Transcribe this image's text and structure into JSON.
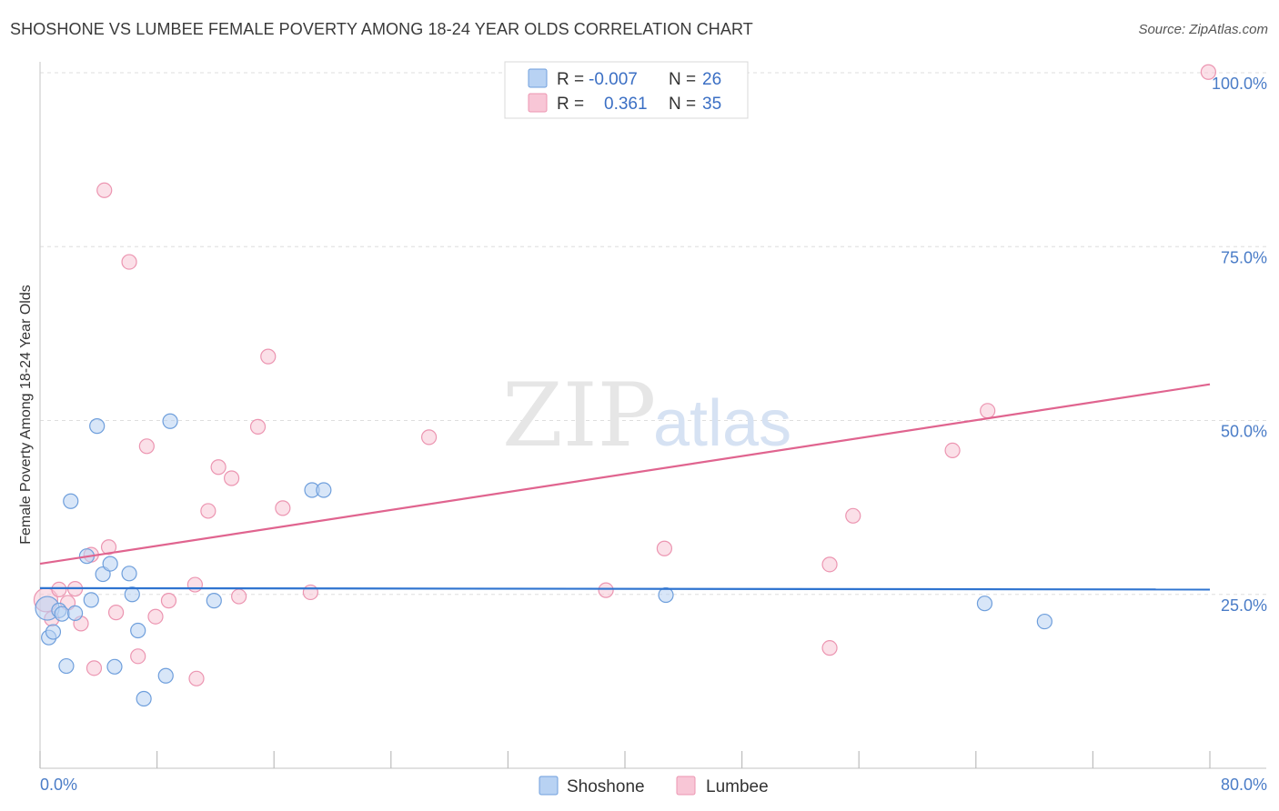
{
  "title": "SHOSHONE VS LUMBEE FEMALE POVERTY AMONG 18-24 YEAR OLDS CORRELATION CHART",
  "source": "Source: ZipAtlas.com",
  "watermark": {
    "zip": "ZIP",
    "atlas": "atlas"
  },
  "legend": {
    "r_label": "R =",
    "n_label": "N =",
    "rows": [
      {
        "name": "Shoshone",
        "r": "-0.007",
        "n": "26"
      },
      {
        "name": "Lumbee",
        "r": "0.361",
        "n": "35"
      }
    ]
  },
  "colors": {
    "shoshone_fill": "#b8d2f3",
    "shoshone_stroke": "#6f9fdc",
    "shoshone_line": "#2f74d0",
    "lumbee_fill": "#f8c6d6",
    "lumbee_stroke": "#ec95b1",
    "lumbee_line": "#e0648f"
  },
  "chart_data": {
    "type": "scatter",
    "title": "SHOSHONE VS LUMBEE FEMALE POVERTY AMONG 18-24 YEAR OLDS CORRELATION CHART",
    "ylabel": "Female Poverty Among 18-24 Year Olds",
    "xlabel": "",
    "xlim": [
      0,
      80
    ],
    "ylim": [
      0,
      100
    ],
    "x_tick_labels": [
      {
        "value": 0,
        "label": "0.0%"
      },
      {
        "value": 80,
        "label": "80.0%"
      }
    ],
    "y_tick_labels": [
      {
        "value": 25,
        "label": "25.0%"
      },
      {
        "value": 50,
        "label": "50.0%"
      },
      {
        "value": 75,
        "label": "75.0%"
      },
      {
        "value": 100,
        "label": "100.0%"
      }
    ],
    "series": [
      {
        "name": "Shoshone",
        "r": -0.007,
        "n": 26,
        "trend": {
          "x": [
            0,
            80
          ],
          "y": [
            25.9,
            25.7
          ]
        },
        "points": [
          {
            "x": 0.5,
            "y": 23.0
          },
          {
            "x": 0.6,
            "y": 18.8
          },
          {
            "x": 0.9,
            "y": 19.6
          },
          {
            "x": 1.3,
            "y": 22.7
          },
          {
            "x": 1.5,
            "y": 22.2
          },
          {
            "x": 1.8,
            "y": 14.7
          },
          {
            "x": 2.1,
            "y": 38.4
          },
          {
            "x": 2.4,
            "y": 22.3
          },
          {
            "x": 3.2,
            "y": 30.5
          },
          {
            "x": 3.5,
            "y": 24.2
          },
          {
            "x": 3.9,
            "y": 49.2
          },
          {
            "x": 4.3,
            "y": 27.9
          },
          {
            "x": 4.8,
            "y": 29.4
          },
          {
            "x": 5.1,
            "y": 14.6
          },
          {
            "x": 6.1,
            "y": 28.0
          },
          {
            "x": 6.3,
            "y": 25.0
          },
          {
            "x": 6.7,
            "y": 19.8
          },
          {
            "x": 7.1,
            "y": 10.0
          },
          {
            "x": 8.6,
            "y": 13.3
          },
          {
            "x": 8.9,
            "y": 49.9
          },
          {
            "x": 11.9,
            "y": 24.1
          },
          {
            "x": 18.6,
            "y": 40.0
          },
          {
            "x": 19.4,
            "y": 40.0
          },
          {
            "x": 42.8,
            "y": 24.9
          },
          {
            "x": 64.6,
            "y": 23.7
          },
          {
            "x": 68.7,
            "y": 21.1
          }
        ]
      },
      {
        "name": "Lumbee",
        "r": 0.361,
        "n": 35,
        "trend": {
          "x": [
            0,
            80
          ],
          "y": [
            29.4,
            55.2
          ]
        },
        "points": [
          {
            "x": 0.4,
            "y": 24.2
          },
          {
            "x": 0.8,
            "y": 21.5
          },
          {
            "x": 1.3,
            "y": 25.7
          },
          {
            "x": 1.9,
            "y": 23.8
          },
          {
            "x": 2.4,
            "y": 25.8
          },
          {
            "x": 2.8,
            "y": 20.8
          },
          {
            "x": 3.5,
            "y": 30.7
          },
          {
            "x": 3.7,
            "y": 14.4
          },
          {
            "x": 4.4,
            "y": 83.1
          },
          {
            "x": 4.7,
            "y": 31.8
          },
          {
            "x": 5.2,
            "y": 22.4
          },
          {
            "x": 6.1,
            "y": 72.8
          },
          {
            "x": 6.7,
            "y": 16.1
          },
          {
            "x": 7.3,
            "y": 46.3
          },
          {
            "x": 7.9,
            "y": 21.8
          },
          {
            "x": 8.8,
            "y": 24.1
          },
          {
            "x": 10.6,
            "y": 26.4
          },
          {
            "x": 10.7,
            "y": 12.9
          },
          {
            "x": 11.5,
            "y": 37.0
          },
          {
            "x": 12.2,
            "y": 43.3
          },
          {
            "x": 13.1,
            "y": 41.7
          },
          {
            "x": 13.6,
            "y": 24.7
          },
          {
            "x": 14.9,
            "y": 49.1
          },
          {
            "x": 15.6,
            "y": 59.2
          },
          {
            "x": 16.6,
            "y": 37.4
          },
          {
            "x": 18.5,
            "y": 25.3
          },
          {
            "x": 26.6,
            "y": 47.6
          },
          {
            "x": 38.7,
            "y": 25.6
          },
          {
            "x": 42.7,
            "y": 31.6
          },
          {
            "x": 54.0,
            "y": 17.3
          },
          {
            "x": 54.0,
            "y": 29.3
          },
          {
            "x": 55.6,
            "y": 36.3
          },
          {
            "x": 62.4,
            "y": 45.7
          },
          {
            "x": 64.8,
            "y": 51.4
          },
          {
            "x": 79.9,
            "y": 100.1
          }
        ]
      }
    ]
  }
}
